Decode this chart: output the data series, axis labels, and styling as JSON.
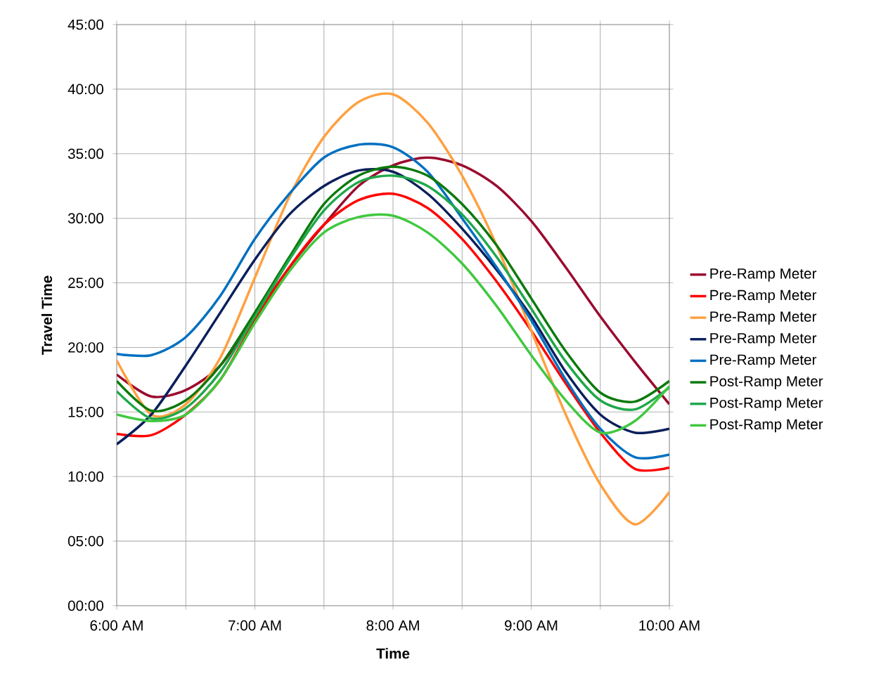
{
  "chart_data": {
    "type": "line",
    "xlabel": "Time",
    "ylabel": "Travel Time",
    "x": [
      6,
      6.25,
      6.5,
      6.75,
      7,
      7.25,
      7.5,
      7.75,
      8,
      8.25,
      8.5,
      8.75,
      9,
      9.25,
      9.5,
      9.75,
      10
    ],
    "xlim": [
      6,
      10
    ],
    "xticks": [
      {
        "value": 6,
        "label": "6:00 AM"
      },
      {
        "value": 6.5,
        "label": null
      },
      {
        "value": 7,
        "label": "7:00 AM"
      },
      {
        "value": 7.5,
        "label": null
      },
      {
        "value": 8,
        "label": "8:00 AM"
      },
      {
        "value": 8.5,
        "label": null
      },
      {
        "value": 9,
        "label": "9:00 AM"
      },
      {
        "value": 9.5,
        "label": null
      },
      {
        "value": 10,
        "label": "10:00 AM"
      }
    ],
    "ylim": [
      0,
      45
    ],
    "yticks": [
      {
        "value": 0,
        "label": "00:00"
      },
      {
        "value": 5,
        "label": "05:00"
      },
      {
        "value": 10,
        "label": "10:00"
      },
      {
        "value": 15,
        "label": "15:00"
      },
      {
        "value": 20,
        "label": "20:00"
      },
      {
        "value": 25,
        "label": "25:00"
      },
      {
        "value": 30,
        "label": "30:00"
      },
      {
        "value": 35,
        "label": "35:00"
      },
      {
        "value": 40,
        "label": "40:00"
      },
      {
        "value": 45,
        "label": "45:00"
      }
    ],
    "grid": true,
    "legend": "right",
    "marker": "none",
    "line_style": "solid",
    "series": [
      {
        "name": "Pre-Ramp Meter",
        "color": "#9b0a2e",
        "values": [
          17.9,
          16.2,
          16.7,
          18.6,
          22.4,
          26.2,
          29.5,
          32.5,
          34.1,
          34.7,
          34.1,
          32.5,
          29.8,
          26.2,
          22.4,
          18.9,
          15.6
        ]
      },
      {
        "name": "Pre-Ramp Meter",
        "color": "#ff0000",
        "values": [
          13.3,
          13.2,
          14.8,
          17.5,
          22.1,
          26.2,
          29.5,
          31.4,
          31.9,
          30.8,
          28.4,
          25.1,
          21.3,
          17.2,
          13.4,
          10.6,
          10.7
        ]
      },
      {
        "name": "Pre-Ramp Meter",
        "color": "#ffa040",
        "values": [
          19.0,
          14.8,
          15.6,
          19.2,
          25.4,
          31.7,
          36.3,
          39.0,
          39.6,
          37.4,
          33.3,
          27.9,
          21.3,
          14.8,
          9.4,
          6.3,
          8.8
        ]
      },
      {
        "name": "Pre-Ramp Meter",
        "color": "#0a1f5c",
        "values": [
          12.5,
          14.8,
          18.6,
          22.7,
          26.8,
          30.3,
          32.5,
          33.7,
          33.6,
          31.9,
          29.2,
          26.0,
          22.4,
          18.1,
          14.8,
          13.4,
          13.7
        ]
      },
      {
        "name": "Pre-Ramp Meter",
        "color": "#0070c0",
        "values": [
          19.5,
          19.4,
          20.8,
          24.0,
          28.4,
          31.9,
          34.7,
          35.7,
          35.5,
          33.6,
          30.0,
          26.2,
          22.1,
          17.5,
          13.7,
          11.5,
          11.7
        ]
      },
      {
        "name": "Post-Ramp Meter",
        "color": "#0b7a0b",
        "values": [
          17.4,
          15.1,
          15.9,
          18.6,
          22.7,
          27.0,
          31.1,
          33.3,
          34.0,
          33.3,
          31.1,
          27.9,
          23.8,
          19.7,
          16.5,
          15.8,
          17.4
        ]
      },
      {
        "name": "Post-Ramp Meter",
        "color": "#1fa84a",
        "values": [
          16.6,
          14.5,
          15.3,
          18.1,
          22.4,
          26.8,
          30.6,
          32.8,
          33.3,
          32.5,
          30.3,
          27.0,
          23.0,
          18.9,
          15.9,
          15.2,
          16.9
        ]
      },
      {
        "name": "Post-Ramp Meter",
        "color": "#40c840",
        "values": [
          14.8,
          14.3,
          14.8,
          17.5,
          21.9,
          25.9,
          28.9,
          30.1,
          30.2,
          28.9,
          26.5,
          23.2,
          19.4,
          15.9,
          13.4,
          14.3,
          17.0
        ]
      }
    ]
  }
}
